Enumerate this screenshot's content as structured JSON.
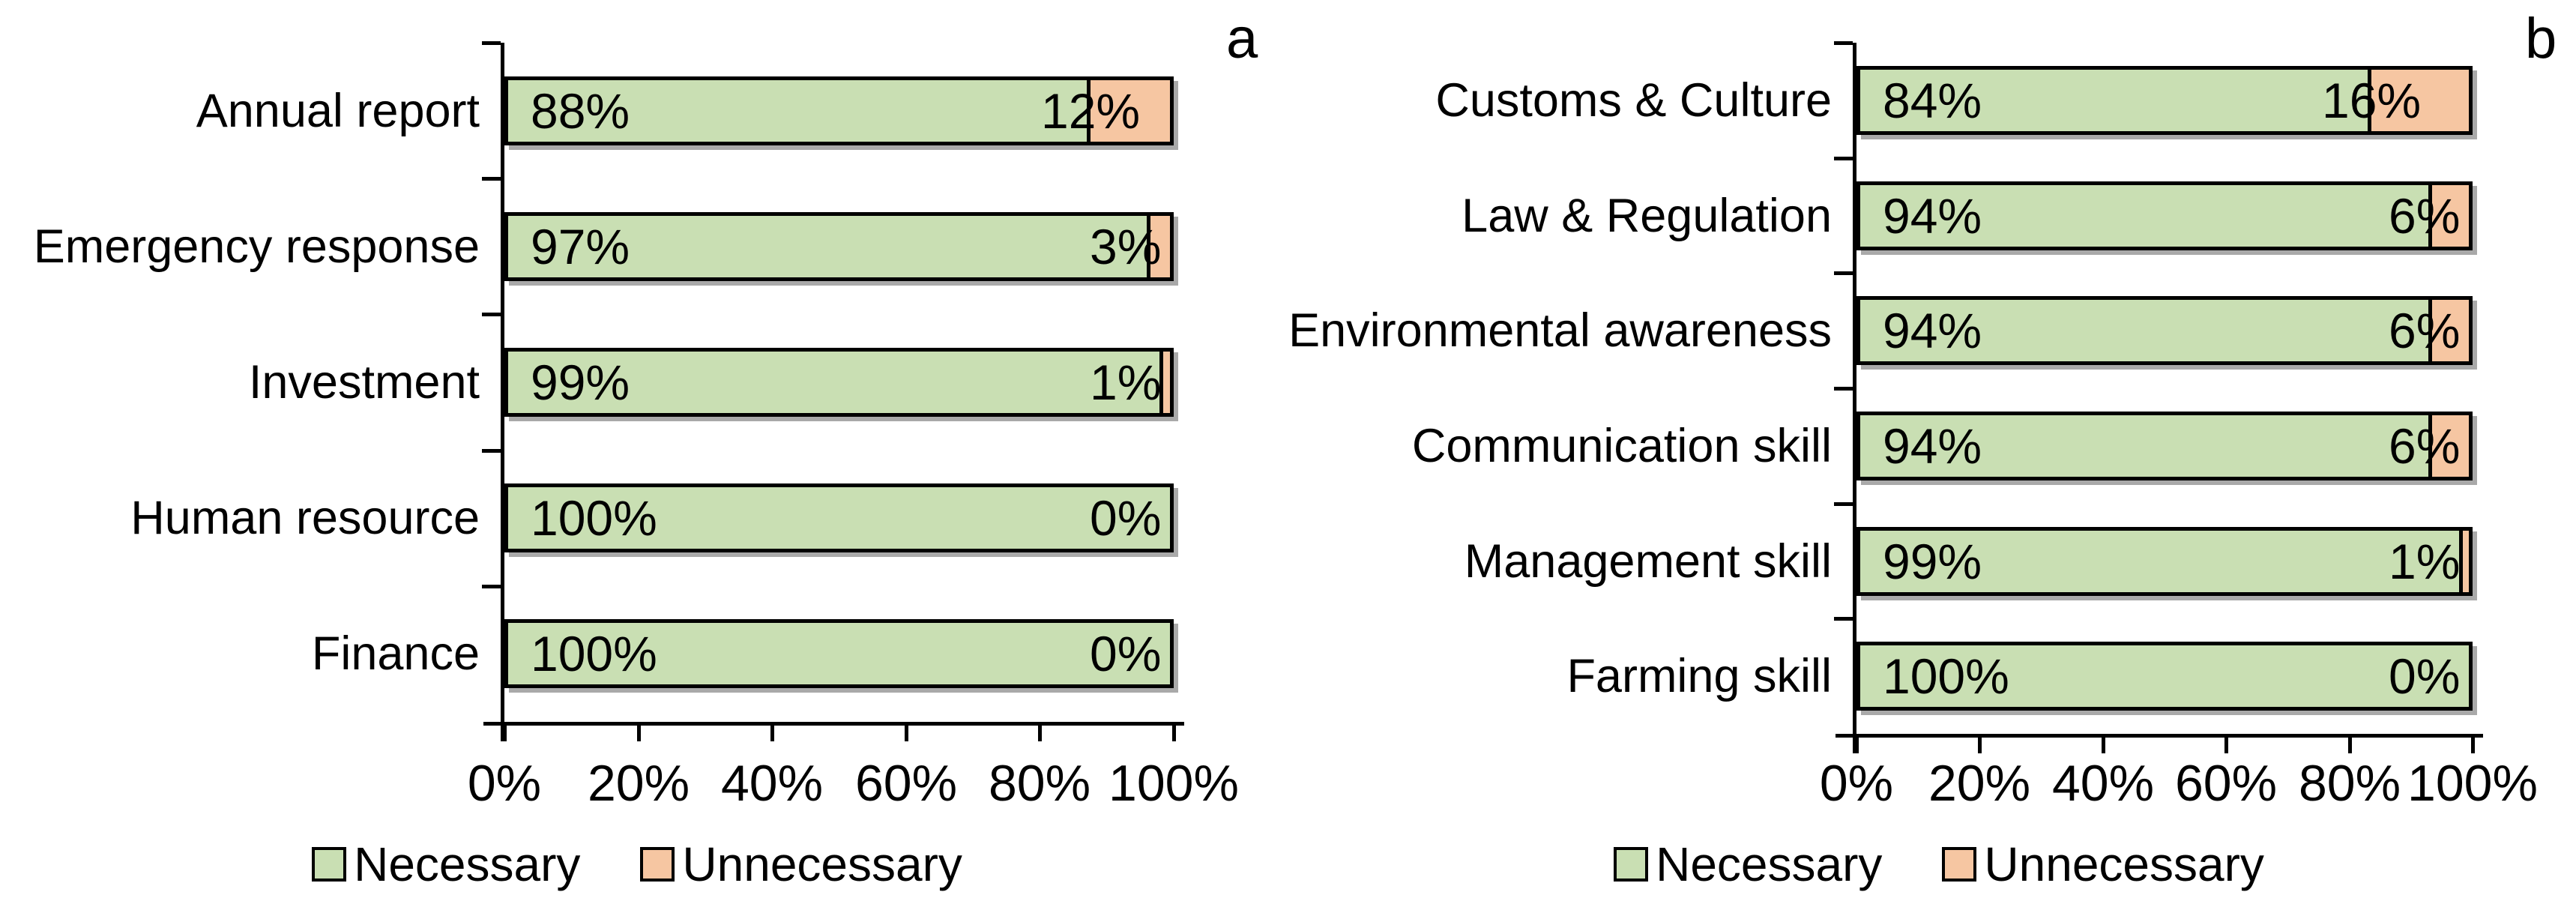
{
  "figure": {
    "background": "#ffffff",
    "description": "Two horizontal stacked bar charts showing share of respondents rating items Necessary vs Unnecessary"
  },
  "colors": {
    "necessary": "#c9dfb3",
    "unnecessary": "#f6c6a2",
    "bar_border": "#000000",
    "bar_shadow": "#a9a9a9",
    "axis": "#000000",
    "text": "#000000"
  },
  "chart_data": [
    {
      "panel_label": "a",
      "type": "bar",
      "orientation": "horizontal",
      "stacked": true,
      "grid": false,
      "xlim": [
        0,
        100
      ],
      "x_ticks": [
        "0%",
        "20%",
        "40%",
        "60%",
        "80%",
        "100%"
      ],
      "categories": [
        "Annual report",
        "Emergency response",
        "Investment",
        "Human resource",
        "Finance"
      ],
      "series": [
        {
          "name": "Necessary",
          "color": "#c9dfb3",
          "values": [
            88,
            97,
            99,
            100,
            100
          ]
        },
        {
          "name": "Unnecessary",
          "color": "#f6c6a2",
          "values": [
            12,
            3,
            1,
            0,
            0
          ]
        }
      ],
      "data_labels": {
        "necessary": [
          "88%",
          "97%",
          "99%",
          "100%",
          "100%"
        ],
        "unnecessary": [
          "12%",
          "3%",
          "1%",
          "0%",
          "0%"
        ]
      },
      "legend": [
        "Necessary",
        "Unnecessary"
      ],
      "legend_position": "bottom"
    },
    {
      "panel_label": "b",
      "type": "bar",
      "orientation": "horizontal",
      "stacked": true,
      "grid": false,
      "xlim": [
        0,
        100
      ],
      "x_ticks": [
        "0%",
        "20%",
        "40%",
        "60%",
        "80%",
        "100%"
      ],
      "categories": [
        "Customs & Culture",
        "Law & Regulation",
        "Environmental awareness",
        "Communication skill",
        "Management skill",
        "Farming skill"
      ],
      "series": [
        {
          "name": "Necessary",
          "color": "#c9dfb3",
          "values": [
            84,
            94,
            94,
            94,
            99,
            100
          ]
        },
        {
          "name": "Unnecessary",
          "color": "#f6c6a2",
          "values": [
            16,
            6,
            6,
            6,
            1,
            0
          ]
        }
      ],
      "data_labels": {
        "necessary": [
          "84%",
          "94%",
          "94%",
          "94%",
          "99%",
          "100%"
        ],
        "unnecessary": [
          "16%",
          "6%",
          "6%",
          "6%",
          "1%",
          "0%"
        ]
      },
      "legend": [
        "Necessary",
        "Unnecessary"
      ],
      "legend_position": "bottom"
    }
  ]
}
